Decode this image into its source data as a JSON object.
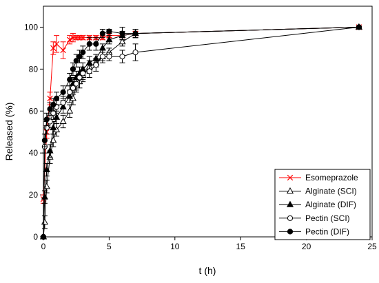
{
  "chart_data": {
    "type": "line",
    "title": "",
    "xlabel": "t (h)",
    "ylabel": "Released (%)",
    "xlim": [
      0,
      25
    ],
    "ylim": [
      0,
      110
    ],
    "xticks": [
      0,
      5,
      10,
      15,
      20,
      25
    ],
    "yticks": [
      0,
      20,
      40,
      60,
      80,
      100
    ],
    "grid": false,
    "legend_position": "bottom-right",
    "series": [
      {
        "name": "Esomeprazole",
        "color": "#ff0000",
        "marker": "x",
        "x": [
          0,
          0.25,
          0.5,
          0.75,
          1.0,
          1.5,
          2.0,
          2.25,
          2.5,
          2.75,
          3.0,
          3.5,
          4.0,
          4.5,
          5.0,
          6.0,
          7.0,
          24.0
        ],
        "y": [
          18,
          50,
          66,
          90,
          92,
          89,
          94,
          95,
          95,
          95,
          95,
          95,
          95,
          95,
          96,
          96,
          97,
          100
        ],
        "err": [
          2,
          3,
          3,
          3,
          4,
          4,
          2,
          2,
          1,
          1,
          1,
          1,
          1,
          1,
          1,
          1,
          1,
          0
        ]
      },
      {
        "name": "Alginate (SCI)",
        "color": "#000000",
        "marker": "triangle-open",
        "x": [
          0,
          0.1,
          0.25,
          0.5,
          0.75,
          1.0,
          1.5,
          2.0,
          2.25,
          2.5,
          2.75,
          3.0,
          3.5,
          4.0,
          4.5,
          5.0,
          6.0,
          7.0,
          24.0
        ],
        "y": [
          0,
          7,
          24,
          38,
          46,
          51,
          55,
          60,
          66,
          72,
          74,
          77,
          81,
          83,
          86,
          88,
          93,
          97,
          100
        ],
        "err": [
          0,
          3,
          3,
          3,
          3,
          3,
          3,
          3,
          3,
          3,
          3,
          3,
          3,
          2,
          2,
          2,
          2,
          2,
          0
        ]
      },
      {
        "name": "Alginate (DIF)",
        "color": "#000000",
        "marker": "triangle-filled",
        "x": [
          0,
          0.1,
          0.25,
          0.5,
          0.75,
          1.0,
          1.5,
          2.0,
          2.25,
          2.5,
          2.75,
          3.0,
          3.5,
          4.0,
          4.5,
          5.0,
          6.0,
          7.0,
          24.0
        ],
        "y": [
          0,
          19,
          32,
          41,
          52,
          57,
          62,
          67,
          73,
          76,
          78,
          80,
          83,
          85,
          90,
          94,
          96,
          97,
          100
        ],
        "err": [
          0,
          3,
          3,
          3,
          3,
          3,
          3,
          3,
          3,
          3,
          3,
          3,
          3,
          2,
          2,
          2,
          2,
          2,
          0
        ]
      },
      {
        "name": "Pectin (SCI)",
        "color": "#000000",
        "marker": "circle-open",
        "x": [
          0,
          0.1,
          0.25,
          0.5,
          0.75,
          1.0,
          1.5,
          2.0,
          2.25,
          2.5,
          2.75,
          3.0,
          3.5,
          4.0,
          4.5,
          5.0,
          6.0,
          7.0,
          24.0
        ],
        "y": [
          0,
          43,
          52,
          55,
          59,
          62,
          64,
          69,
          71,
          73,
          76,
          78,
          79,
          82,
          86,
          86,
          86,
          88,
          100
        ],
        "err": [
          0,
          3,
          3,
          3,
          3,
          3,
          3,
          3,
          3,
          3,
          3,
          3,
          3,
          3,
          3,
          2,
          3,
          4,
          0
        ]
      },
      {
        "name": "Pectin (DIF)",
        "color": "#000000",
        "marker": "circle-filled",
        "x": [
          0,
          0.1,
          0.25,
          0.5,
          0.75,
          1.0,
          1.5,
          2.0,
          2.25,
          2.5,
          2.75,
          3.0,
          3.5,
          4.0,
          4.5,
          5.0,
          6.0,
          7.0,
          24.0
        ],
        "y": [
          0,
          46,
          56,
          61,
          63,
          66,
          69,
          75,
          80,
          84,
          86,
          88,
          92,
          92,
          97,
          98,
          97,
          97,
          100
        ],
        "err": [
          0,
          3,
          3,
          3,
          3,
          3,
          3,
          3,
          3,
          3,
          3,
          3,
          3,
          3,
          2,
          1,
          3,
          2,
          0
        ]
      }
    ]
  }
}
